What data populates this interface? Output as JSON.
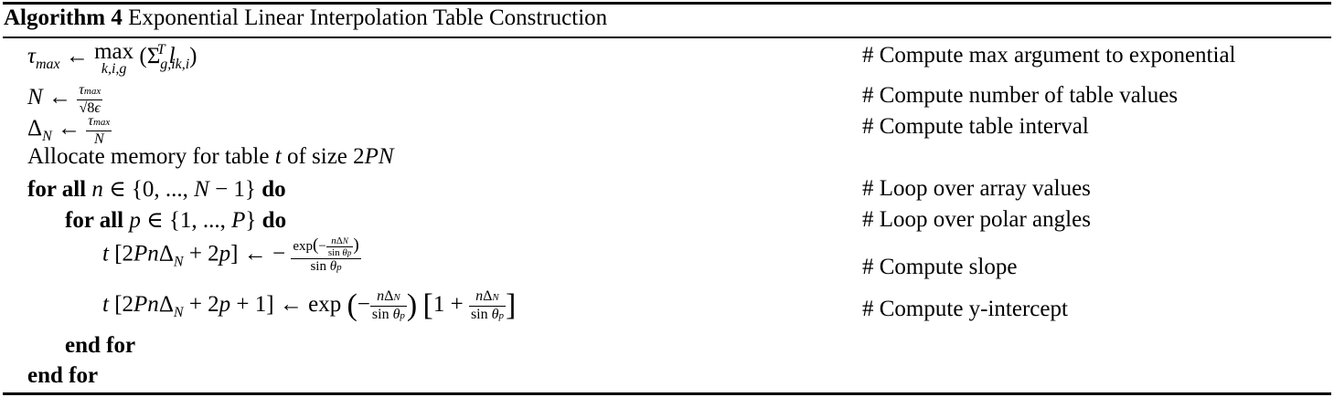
{
  "caption": {
    "label": "Algorithm 4",
    "title": "Exponential Linear Interpolation Table Construction"
  },
  "lines": [
    {
      "id": "tau-max",
      "comment": "# Compute max argument to exponential"
    },
    {
      "id": "n-values",
      "comment": "# Compute number of table values"
    },
    {
      "id": "delta",
      "comment": "# Compute table interval"
    },
    {
      "id": "allocate",
      "text": "Allocate memory for table",
      "comment": ""
    },
    {
      "id": "for-n",
      "kw_for": "for all",
      "kw_do": "do",
      "comment": "# Loop over array values"
    },
    {
      "id": "for-p",
      "kw_for": "for all",
      "kw_do": "do",
      "comment": "# Loop over polar angles"
    },
    {
      "id": "slope",
      "comment": "# Compute slope"
    },
    {
      "id": "intercept",
      "comment": "# Compute y-intercept"
    },
    {
      "id": "end-p",
      "kw": "end for"
    },
    {
      "id": "end-n",
      "kw": "end for"
    }
  ],
  "allocate_tail": {
    "of_size": "of size"
  }
}
